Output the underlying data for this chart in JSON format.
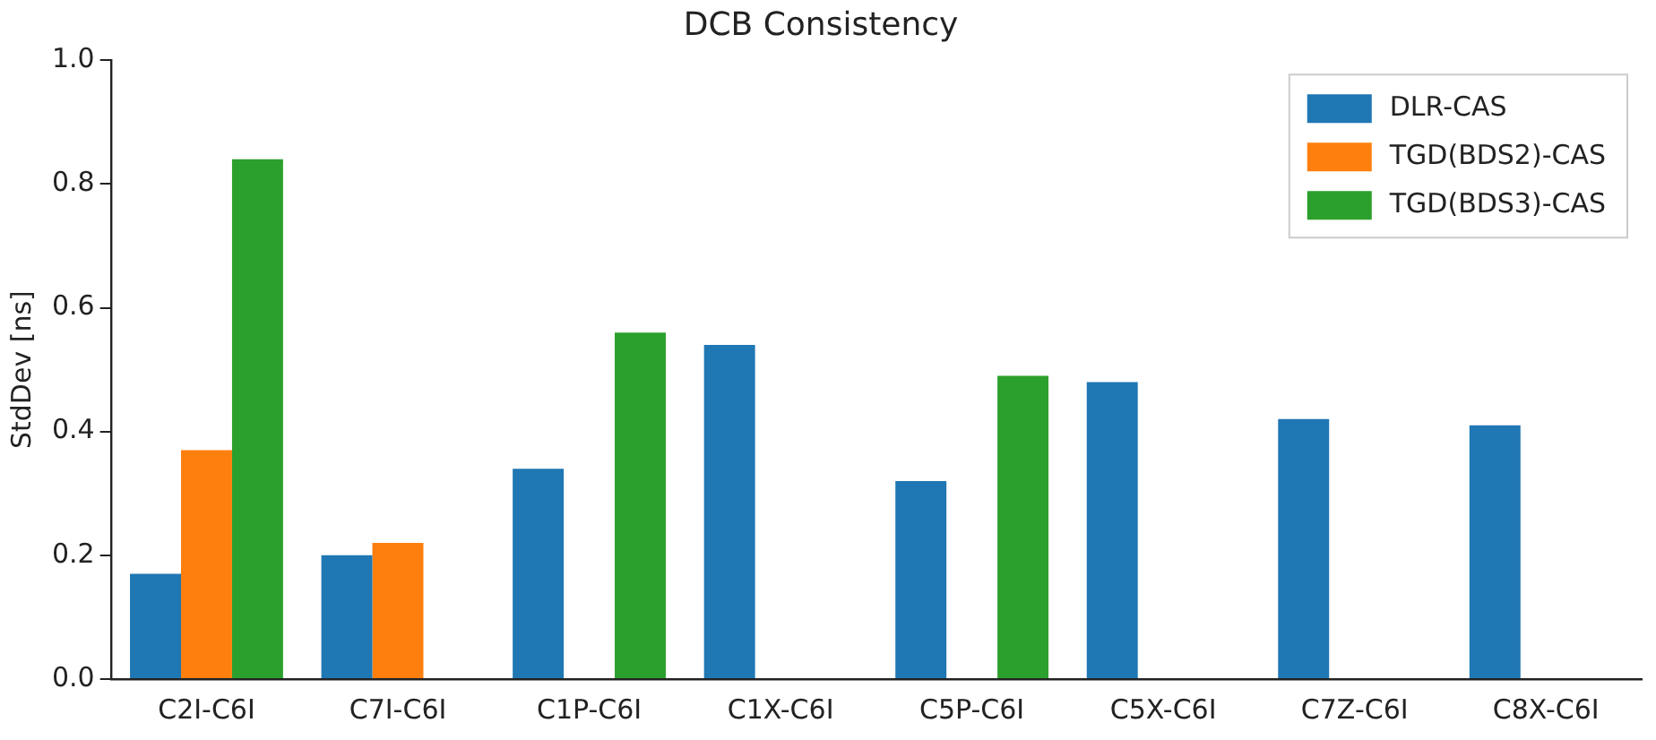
{
  "chart_data": {
    "type": "bar",
    "title": "DCB Consistency",
    "ylabel": "StdDev [ns]",
    "categories": [
      "C2I-C6I",
      "C7I-C6I",
      "C1P-C6I",
      "C1X-C6I",
      "C5P-C6I",
      "C5X-C6I",
      "C7Z-C6I",
      "C8X-C6I"
    ],
    "series": [
      {
        "name": "DLR-CAS",
        "color": "#1f77b4",
        "values": [
          0.17,
          0.2,
          0.34,
          0.54,
          0.32,
          0.48,
          0.42,
          0.41
        ]
      },
      {
        "name": "TGD(BDS2)-CAS",
        "color": "#ff7f0e",
        "values": [
          0.37,
          0.22,
          null,
          null,
          null,
          null,
          null,
          null
        ]
      },
      {
        "name": "TGD(BDS3)-CAS",
        "color": "#2ca02c",
        "values": [
          0.84,
          null,
          0.56,
          null,
          0.49,
          null,
          null,
          null
        ]
      }
    ],
    "ylim": [
      0,
      1
    ],
    "yticks": [
      {
        "value": 0,
        "label": "0.0"
      },
      {
        "value": 0.2,
        "label": "0.2"
      },
      {
        "value": 0.4,
        "label": "0.4"
      },
      {
        "value": 0.6,
        "label": "0.6"
      },
      {
        "value": 0.8,
        "label": "0.8"
      },
      {
        "value": 1,
        "label": "1.0"
      }
    ],
    "grid": false,
    "legend": "top right"
  }
}
